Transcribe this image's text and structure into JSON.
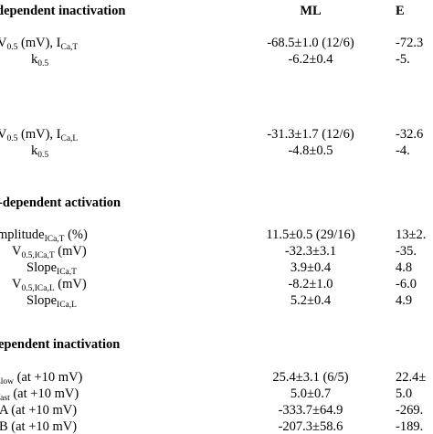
{
  "table": {
    "section_voltage_inact": "dependent inactivation",
    "col_ml": "ML",
    "col_e": "E",
    "r1": {
      "pre": "V",
      "sub": "0.5",
      "mid": " (mV), I",
      "sub2": "Ca,T",
      "ml": "-68.5±1.0 (12/6)",
      "e": "-72.3"
    },
    "r2": {
      "pre": "k",
      "sub": "0.5",
      "ml": "-6.2±0.4",
      "e": "-5."
    },
    "r3": {
      "pre": "V",
      "sub": "0.5",
      "mid": " (mV), I",
      "sub2": "Ca,L",
      "ml": "-31.3±1.7 (12/6)",
      "e": "-32.6"
    },
    "r4": {
      "pre": "k",
      "sub": "0.5",
      "ml": "-4.8±0.5",
      "e": "-4."
    },
    "section_voltage_act": "-dependent activation",
    "r5": {
      "pre": "mplitude",
      "sub": "ICa,T",
      "post": " (%)",
      "ml": "11.5±0.5 (29/16)",
      "e": "13±2."
    },
    "r6": {
      "pre": "V",
      "sub": "0.5,ICa,T",
      "post": " (mV)",
      "ml": "-32.3±3.1",
      "e": "-35."
    },
    "r7": {
      "pre": "Slope",
      "sub": "ICa,T",
      "ml": "3.9±0.4",
      "e": "4.8"
    },
    "r8": {
      "pre": "V",
      "sub": "0.5,ICa,L",
      "post": " (mV)",
      "ml": "-8.2±1.0",
      "e": "-6.0"
    },
    "r9": {
      "pre": "Slope",
      "sub": "ICa,L",
      "ml": "5.2±0.4",
      "e": "4.9"
    },
    "section_time_inact": "ependent inactivation",
    "r10": {
      "pre": "slow",
      "post": " (at +10 mV)",
      "ml": "25.4±3.1 (6/5)",
      "e": "22.4±"
    },
    "r11": {
      "pre": "fast",
      "post": " (at +10 mV)",
      "ml": "5.0±0.7",
      "e": "5.0"
    },
    "r12": {
      "pre": "A  (at +10 mV)",
      "ml": "-333.7±64.9",
      "e": "-269."
    },
    "r13": {
      "pre": "B  (at +10 mV)",
      "ml": "-207.3±58.6",
      "e": "-189."
    }
  }
}
